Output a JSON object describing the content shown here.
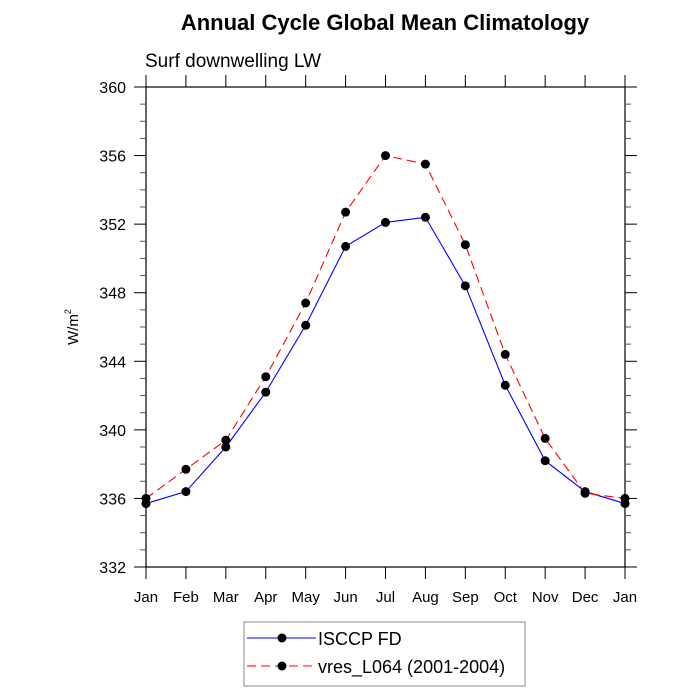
{
  "chart_data": {
    "type": "line",
    "title": "Annual Cycle Global Mean Climatology",
    "subtitle": "Surf downwelling LW",
    "xlabel": "",
    "ylabel": "W/m",
    "ylabel_superscript": "2",
    "categories": [
      "Jan",
      "Feb",
      "Mar",
      "Apr",
      "May",
      "Jun",
      "Jul",
      "Aug",
      "Sep",
      "Oct",
      "Nov",
      "Dec",
      "Jan"
    ],
    "ylim": [
      332,
      360
    ],
    "yticks": [
      332,
      336,
      340,
      344,
      348,
      352,
      356,
      360
    ],
    "ytick_labels": [
      "332",
      "336",
      "340",
      "344",
      "348",
      "352",
      "356",
      "360"
    ],
    "grid": false,
    "legend_position": "bottom-center",
    "series": [
      {
        "name": "ISCCP FD",
        "color": "#0000ff",
        "dash": "solid",
        "marker": "filled-circle",
        "values": [
          335.7,
          336.4,
          339.0,
          342.2,
          346.1,
          350.7,
          352.1,
          352.4,
          348.4,
          342.6,
          338.2,
          336.4,
          335.7
        ]
      },
      {
        "name": "vres_L064 (2001-2004)",
        "color": "#ff0000",
        "dash": "dashed",
        "marker": "filled-circle",
        "values": [
          336.0,
          337.7,
          339.4,
          343.1,
          347.4,
          352.7,
          356.0,
          355.5,
          350.8,
          344.4,
          339.5,
          336.3,
          336.0
        ]
      }
    ]
  }
}
